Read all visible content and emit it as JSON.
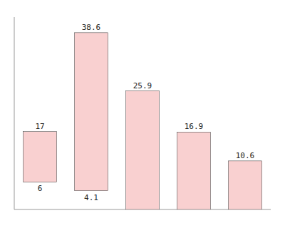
{
  "chart_data": {
    "type": "bar",
    "categories": [
      null,
      null,
      null,
      null,
      null
    ],
    "values": [
      17,
      38.6,
      25.9,
      16.9,
      10.6
    ],
    "bottoms": [
      6,
      4.1,
      0,
      0,
      0
    ],
    "bottom_labels": [
      "6",
      "4.1",
      null,
      null,
      null
    ],
    "color": "#f9d0d0",
    "ylim": [
      0,
      42
    ],
    "data_labels": true,
    "tick_labels": false
  }
}
